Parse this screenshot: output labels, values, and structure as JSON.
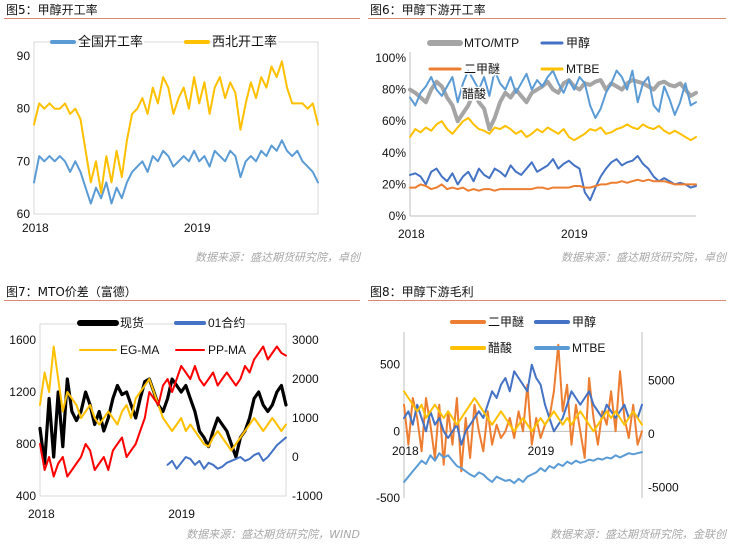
{
  "panels": [
    {
      "title": "图5：甲醇开工率",
      "source": "数据来源：盛达期货研究院，卓创"
    },
    {
      "title": "图6：甲醇下游开工率",
      "source": "数据来源：盛达期货研究院，卓创"
    },
    {
      "title": "图7：MTO价差（富德）",
      "source": "数据来源：盛达期货研究院，WIND"
    },
    {
      "title": "图8：甲醇下游毛利",
      "source": "数据来源：盛达期货研究院，金联创"
    }
  ],
  "colors": {
    "blue": "#5b9bd5",
    "gold": "#ffc000",
    "gray": "#a5a5a5",
    "orange": "#ed7d31",
    "navy": "#4472c4",
    "red": "#ff0000",
    "black": "#000000"
  },
  "chart_data": [
    {
      "type": "line",
      "title": "",
      "x_ticks": [
        "2018",
        "2019"
      ],
      "ylim": [
        60,
        90
      ],
      "y_ticks": [
        "60",
        "70",
        "80",
        "90"
      ],
      "legend_position": "top",
      "series": [
        {
          "name": "全国开工率",
          "color": "#5b9bd5",
          "values": [
            66,
            71,
            70,
            71,
            70,
            71,
            70,
            68,
            70,
            68,
            65,
            62,
            65,
            63,
            66,
            62,
            65,
            63,
            66,
            68,
            69,
            70,
            68,
            71,
            70,
            72,
            71,
            69,
            70,
            71,
            70,
            72,
            70,
            71,
            69,
            72,
            71,
            70,
            72,
            71,
            67,
            70,
            71,
            70,
            72,
            71,
            73,
            72,
            74,
            72,
            71,
            72,
            70,
            69,
            68,
            66
          ]
        },
        {
          "name": "西北开工率",
          "color": "#ffc000",
          "values": [
            77,
            81,
            80,
            81,
            80,
            80,
            81,
            79,
            80,
            78,
            72,
            66,
            70,
            64,
            71,
            66,
            72,
            67,
            74,
            79,
            80,
            82,
            79,
            84,
            81,
            86,
            84,
            79,
            82,
            84,
            80,
            86,
            81,
            85,
            79,
            84,
            86,
            82,
            85,
            83,
            76,
            81,
            85,
            82,
            86,
            84,
            88,
            86,
            89,
            84,
            81,
            81,
            81,
            80,
            81,
            77
          ]
        }
      ]
    },
    {
      "type": "line",
      "title": "",
      "x_ticks": [
        "2018",
        "2019"
      ],
      "ylim": [
        0,
        100
      ],
      "y_ticks": [
        "0%",
        "20%",
        "40%",
        "60%",
        "80%",
        "100%"
      ],
      "legend_position": "top",
      "series": [
        {
          "name": "MTO/MTP",
          "color": "#a5a5a5",
          "values": [
            80,
            78,
            75,
            72,
            80,
            85,
            82,
            75,
            70,
            60,
            65,
            70,
            78,
            72,
            68,
            55,
            62,
            72,
            78,
            75,
            80,
            76,
            72,
            78,
            80,
            82,
            85,
            80,
            78,
            84,
            86,
            82,
            80,
            84,
            83,
            85,
            86,
            80,
            84,
            82,
            80,
            84,
            86,
            85,
            84,
            82,
            80,
            84,
            85,
            83,
            82,
            84,
            80,
            76,
            78
          ]
        },
        {
          "name": "甲醇",
          "color": "#4472c4",
          "values": [
            26,
            27,
            25,
            20,
            28,
            30,
            25,
            22,
            27,
            20,
            25,
            28,
            22,
            30,
            26,
            24,
            30,
            28,
            25,
            32,
            28,
            26,
            30,
            34,
            28,
            30,
            32,
            36,
            30,
            33,
            35,
            32,
            30,
            15,
            10,
            18,
            25,
            30,
            34,
            36,
            32,
            34,
            35,
            38,
            33,
            30,
            25,
            22,
            24,
            22,
            20,
            21,
            20,
            18,
            19
          ]
        },
        {
          "name": "二甲醚",
          "color": "#ed7d31",
          "values": [
            18,
            18,
            20,
            19,
            17,
            18,
            20,
            17,
            18,
            17,
            18,
            16,
            17,
            16,
            17,
            17,
            16,
            17,
            17,
            17,
            17,
            17,
            17,
            17,
            18,
            18,
            17,
            18,
            18,
            18,
            18,
            19,
            19,
            18,
            18,
            19,
            20,
            20,
            21,
            21,
            22,
            21,
            22,
            23,
            22,
            23,
            22,
            22,
            22,
            21,
            20,
            20,
            20,
            20,
            20
          ]
        },
        {
          "name": "MTBE",
          "color": "#ffc000",
          "values": [
            50,
            55,
            53,
            56,
            54,
            58,
            60,
            55,
            52,
            56,
            60,
            62,
            58,
            55,
            54,
            52,
            56,
            55,
            57,
            55,
            52,
            54,
            50,
            52,
            55,
            53,
            56,
            54,
            52,
            55,
            50,
            48,
            50,
            52,
            55,
            54,
            56,
            52,
            53,
            55,
            56,
            58,
            56,
            55,
            58,
            56,
            55,
            57,
            54,
            52,
            54,
            52,
            50,
            48,
            50
          ]
        },
        {
          "name": "醋酸",
          "color": "#5b9bd5",
          "values": [
            75,
            70,
            78,
            82,
            88,
            80,
            76,
            82,
            88,
            72,
            84,
            92,
            86,
            80,
            88,
            76,
            92,
            84,
            80,
            88,
            78,
            84,
            90,
            80,
            86,
            82,
            88,
            92,
            84,
            78,
            86,
            80,
            88,
            84,
            70,
            62,
            68,
            78,
            84,
            92,
            88,
            80,
            92,
            72,
            84,
            88,
            70,
            66,
            82,
            74,
            64,
            72,
            84,
            70,
            72
          ]
        }
      ]
    },
    {
      "type": "line",
      "title": "",
      "x_ticks": [
        "2018",
        "2019"
      ],
      "ylim": [
        400,
        1600
      ],
      "y_ticks": [
        "400",
        "800",
        "1200",
        "1600"
      ],
      "y2lim": [
        -1000,
        3000
      ],
      "y2_ticks": [
        "-1000",
        "0",
        "1000",
        "2000",
        "3000"
      ],
      "legend_position": "top",
      "series": [
        {
          "name": "现货",
          "color": "#000000",
          "axis": "left",
          "values": [
            920,
            650,
            1150,
            700,
            1200,
            780,
            1300,
            1050,
            980,
            1050,
            1200,
            1100,
            950,
            1050,
            900,
            1000,
            1150,
            1250,
            1180,
            1200,
            1100,
            1000,
            1150,
            1280,
            1300,
            1200,
            1100,
            1050,
            1150,
            1300,
            1250,
            1200,
            1250,
            1150,
            1050,
            900,
            850,
            780,
            900,
            1000,
            950,
            900,
            800,
            700,
            850,
            900,
            1000,
            1150,
            1200,
            1100,
            1050,
            1100,
            1200,
            1250,
            1100
          ]
        },
        {
          "name": "01合约",
          "color": "#4472c4",
          "axis": "right",
          "start_index": 28,
          "values": [
            -200,
            -100,
            -300,
            -150,
            0,
            -50,
            -200,
            -100,
            -300,
            -150,
            -200,
            -300,
            -250,
            -150,
            -100,
            -50,
            0,
            -100,
            -50,
            50,
            100,
            -100,
            0,
            150,
            300,
            400,
            500
          ]
        },
        {
          "name": "EG-MA",
          "color": "#ffc000",
          "axis": "left",
          "values": [
            1100,
            1350,
            1200,
            1550,
            1300,
            1050,
            1200,
            1150,
            1100,
            1000,
            1050,
            1100,
            1000,
            950,
            1000,
            1050,
            1000,
            950,
            1050,
            1100,
            1000,
            1150,
            1200,
            1250,
            1300,
            1200,
            1100,
            1000,
            950,
            900,
            950,
            1000,
            900,
            950,
            900,
            850,
            800,
            780,
            850,
            900,
            850,
            800,
            750,
            800,
            850,
            900,
            950,
            1000,
            950,
            900,
            950,
            1000,
            950,
            900,
            950
          ]
        },
        {
          "name": "PP-MA",
          "color": "#ff0000",
          "axis": "left",
          "values": [
            800,
            600,
            700,
            550,
            650,
            700,
            550,
            600,
            650,
            700,
            800,
            750,
            600,
            650,
            700,
            600,
            750,
            800,
            850,
            700,
            750,
            800,
            900,
            1000,
            1200,
            1150,
            1100,
            1250,
            1300,
            1200,
            1300,
            1400,
            1350,
            1300,
            1400,
            1300,
            1250,
            1300,
            1350,
            1250,
            1300,
            1350,
            1300,
            1250,
            1300,
            1400,
            1350,
            1450,
            1500,
            1550,
            1450,
            1500,
            1550,
            1500,
            1480
          ]
        }
      ]
    },
    {
      "type": "line",
      "title": "",
      "x_ticks": [
        "2018",
        "2019"
      ],
      "ylim": [
        -500,
        700
      ],
      "y_ticks": [
        "-500",
        "0",
        "500"
      ],
      "y2lim": [
        -6000,
        9000
      ],
      "y2_ticks": [
        "-5000",
        "0",
        "5000"
      ],
      "legend_position": "top",
      "series": [
        {
          "name": "二甲醚",
          "color": "#ed7d31",
          "axis": "left",
          "values": [
            200,
            -100,
            250,
            100,
            -150,
            250,
            50,
            -200,
            200,
            -250,
            150,
            -100,
            250,
            -300,
            100,
            -200,
            200,
            0,
            -150,
            150,
            -100,
            50,
            -50,
            0,
            100,
            -50,
            150,
            0,
            350,
            -100,
            100,
            -50,
            50,
            100,
            300,
            650,
            150,
            350,
            -100,
            200,
            0,
            -200,
            400,
            100,
            -100,
            150,
            50,
            300,
            0,
            450,
            100,
            -50,
            200,
            -100,
            0
          ]
        },
        {
          "name": "甲醇",
          "color": "#4472c4",
          "axis": "left",
          "values": [
            100,
            150,
            50,
            200,
            100,
            0,
            150,
            50,
            100,
            0,
            -50,
            0,
            50,
            -100,
            0,
            50,
            100,
            150,
            100,
            200,
            300,
            250,
            350,
            400,
            300,
            450,
            400,
            350,
            300,
            500,
            400,
            350,
            200,
            100,
            0,
            50,
            100,
            200,
            300,
            250,
            200,
            250,
            300,
            200,
            150,
            100,
            200,
            150,
            100,
            150,
            200,
            100,
            150,
            100,
            200
          ]
        },
        {
          "name": "醋酸",
          "color": "#ffc000",
          "axis": "left",
          "values": [
            300,
            250,
            200,
            150,
            200,
            100,
            150,
            200,
            150,
            100,
            150,
            100,
            50,
            100,
            150,
            200,
            250,
            200,
            150,
            100,
            50,
            100,
            150,
            100,
            50,
            0,
            50,
            100,
            50,
            0,
            50,
            100,
            50,
            100,
            150,
            100,
            50,
            100,
            50,
            100,
            150,
            100,
            50,
            0,
            50,
            100,
            150,
            100,
            150,
            100,
            50,
            100,
            150,
            100,
            50
          ]
        },
        {
          "name": "MTBE",
          "color": "#5b9bd5",
          "axis": "right",
          "values": [
            -4500,
            -4000,
            -3500,
            -3000,
            -2500,
            -2800,
            -2000,
            -2500,
            -1800,
            -2200,
            -2000,
            -2500,
            -3000,
            -3200,
            -3500,
            -3800,
            -4000,
            -3600,
            -3800,
            -4200,
            -4500,
            -4000,
            -4200,
            -4400,
            -4300,
            -4600,
            -4200,
            -4500,
            -4000,
            -3800,
            -3600,
            -3200,
            -3500,
            -3000,
            -3200,
            -2800,
            -3000,
            -2600,
            -2800,
            -2500,
            -2700,
            -2600,
            -2400,
            -2500,
            -2300,
            -2400,
            -2200,
            -2300,
            -2000,
            -2200,
            -2000,
            -1800,
            -1900,
            -1800,
            -1700
          ]
        }
      ]
    }
  ]
}
